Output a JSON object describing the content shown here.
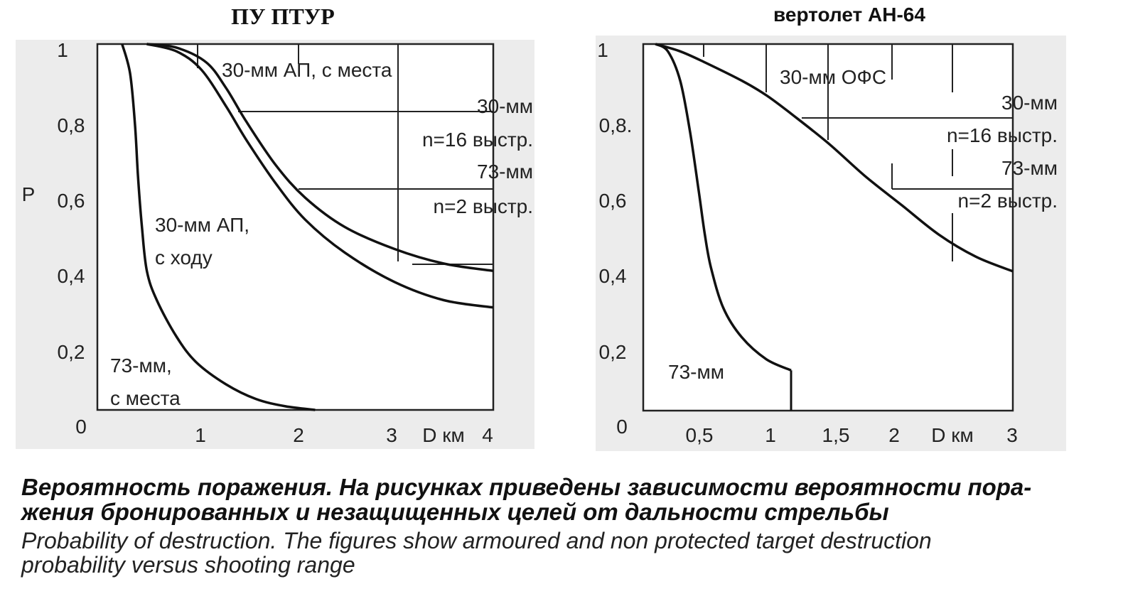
{
  "chart_data": [
    {
      "type": "line",
      "title": "ПУ ПТУР",
      "ylabel": "P",
      "xlabel": "D км",
      "xlim": [
        0,
        4
      ],
      "ylim": [
        0,
        1
      ],
      "x_ticks": [
        "0",
        "1",
        "2",
        "3",
        "4"
      ],
      "y_ticks": [
        "1",
        "0,8",
        "0,6",
        "0,4",
        "0,2",
        "0"
      ],
      "series": [
        {
          "name": "30-мм АП, с места",
          "x": [
            0.5,
            0.8,
            1.1,
            1.3,
            1.5,
            1.8,
            2.1,
            2.5,
            3.0,
            3.5,
            4.0
          ],
          "y": [
            1.0,
            0.99,
            0.95,
            0.88,
            0.79,
            0.67,
            0.58,
            0.5,
            0.44,
            0.4,
            0.38
          ]
        },
        {
          "name": "30-мм АП, с ходу",
          "x": [
            0.5,
            0.8,
            1.05,
            1.3,
            1.5,
            1.8,
            2.1,
            2.5,
            3.0,
            3.5,
            4.0
          ],
          "y": [
            1.0,
            0.98,
            0.93,
            0.83,
            0.74,
            0.62,
            0.52,
            0.43,
            0.35,
            0.3,
            0.28
          ]
        },
        {
          "name": "73-мм, с места",
          "x": [
            0.25,
            0.33,
            0.38,
            0.41,
            0.45,
            0.5,
            0.6,
            0.8,
            1.0,
            1.3,
            1.6,
            1.9,
            2.2
          ],
          "y": [
            1.0,
            0.92,
            0.78,
            0.64,
            0.5,
            0.38,
            0.3,
            0.2,
            0.13,
            0.07,
            0.03,
            0.01,
            0.0
          ]
        }
      ],
      "annotations": [
        "30-мм АП, с места",
        "30-мм АП,",
        "с ходу",
        "73-мм,",
        "с места",
        "30-мм",
        "n=16 выстр.",
        "73-мм",
        "n=2 выстр."
      ]
    },
    {
      "type": "line",
      "title": "вертолет  АН-64",
      "ylabel": "",
      "xlabel": "D км",
      "xlim": [
        0,
        3
      ],
      "ylim": [
        0,
        1
      ],
      "x_ticks": [
        "0,5",
        "1",
        "1,5",
        "2",
        "3"
      ],
      "y_ticks": [
        "1",
        "0,8.",
        "0,6",
        "0,4",
        "0,2",
        "0"
      ],
      "series": [
        {
          "name": "30-мм ОФС",
          "x": [
            0.1,
            0.3,
            0.5,
            0.8,
            1.0,
            1.2,
            1.5,
            1.8,
            2.1,
            2.4,
            2.7,
            3.0
          ],
          "y": [
            1.0,
            0.98,
            0.95,
            0.9,
            0.86,
            0.81,
            0.73,
            0.64,
            0.56,
            0.48,
            0.42,
            0.38
          ]
        },
        {
          "name": "73-мм",
          "x": [
            0.1,
            0.2,
            0.3,
            0.38,
            0.45,
            0.5,
            0.55,
            0.65,
            0.8,
            1.0,
            1.2
          ],
          "y": [
            1.0,
            0.98,
            0.9,
            0.76,
            0.6,
            0.48,
            0.39,
            0.28,
            0.2,
            0.14,
            0.11
          ]
        }
      ],
      "annotations": [
        "30-мм ОФС",
        "73-мм",
        "30-мм",
        "n=16 выстр.",
        "73-мм",
        "n=2 выстр."
      ]
    }
  ],
  "caption": {
    "ru_line1": "Вероятность поражения. На рисунках приведены зависимости вероятности пора-",
    "ru_line2": "жения бронированных и незащищенных целей от дальности стрельбы",
    "en_line1": "Probability of destruction. The figures show armoured and non protected target destruction",
    "en_line2": "probability versus shooting range"
  }
}
